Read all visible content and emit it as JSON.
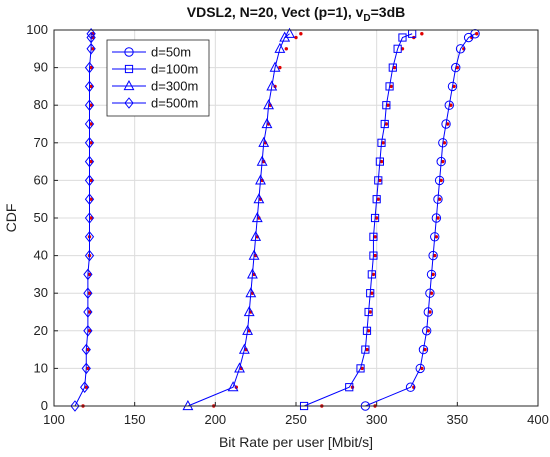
{
  "chart_data": {
    "type": "line",
    "title": {
      "main": "VDSL2, N=20, Vect (p=1), v",
      "sub": "D",
      "tail": "=3dB"
    },
    "xlabel": "Bit Rate per user [Mbit/s]",
    "ylabel": "CDF",
    "xlim": [
      100,
      400
    ],
    "ylim": [
      0,
      100
    ],
    "xticks": [
      "100",
      "150",
      "200",
      "250",
      "300",
      "350",
      "400"
    ],
    "yticks": [
      "0",
      "10",
      "20",
      "30",
      "40",
      "50",
      "60",
      "70",
      "80",
      "90",
      "100"
    ],
    "grid": true,
    "legend": {
      "position": "top-left"
    },
    "line_color": "#0000ff",
    "ref_color": "#e00000",
    "y": [
      0,
      5,
      10,
      15,
      20,
      25,
      30,
      35,
      40,
      45,
      50,
      55,
      60,
      65,
      70,
      75,
      80,
      85,
      90,
      95,
      98,
      99
    ],
    "series": [
      {
        "name": "d=50m",
        "marker": "circle",
        "x": [
          293,
          321,
          327,
          329,
          331,
          332,
          333,
          334,
          335,
          336,
          337,
          338,
          339,
          340,
          341,
          343,
          345,
          347,
          349,
          352,
          357,
          361
        ]
      },
      {
        "name": "d=100m",
        "marker": "square",
        "x": [
          255,
          283,
          290,
          293,
          294,
          295,
          296,
          297,
          298,
          298,
          299,
          300,
          301,
          302,
          303,
          305,
          306,
          308,
          310,
          313,
          316,
          322
        ]
      },
      {
        "name": "d=300m",
        "marker": "triangle",
        "x": [
          183,
          211,
          215,
          218,
          220,
          221,
          222,
          223,
          224,
          225,
          226,
          227,
          228,
          229,
          230,
          232,
          233,
          235,
          237,
          240,
          243,
          246
        ]
      },
      {
        "name": "d=500m",
        "marker": "diamond",
        "x": [
          113,
          119,
          120,
          120,
          121,
          121,
          121,
          121,
          122,
          122,
          122,
          122,
          122,
          122,
          122,
          122,
          122,
          122,
          122,
          123,
          123,
          123
        ]
      }
    ],
    "reference_points": [
      {
        "x": [
          299,
          323,
          328,
          330,
          332,
          333,
          334,
          335,
          336,
          337,
          338,
          339,
          340,
          341,
          342,
          344,
          346,
          348,
          350,
          354,
          359,
          362
        ],
        "y": [
          0,
          5,
          10,
          15,
          20,
          25,
          30,
          35,
          40,
          45,
          50,
          55,
          60,
          65,
          70,
          75,
          80,
          85,
          90,
          95,
          98,
          99
        ]
      },
      {
        "x": [
          266,
          285,
          291,
          294,
          295,
          296,
          297,
          298,
          299,
          299,
          300,
          301,
          302,
          303,
          304,
          306,
          307,
          309,
          311,
          316,
          323,
          328
        ],
        "y": [
          0,
          5,
          10,
          15,
          20,
          25,
          30,
          35,
          40,
          45,
          50,
          55,
          60,
          65,
          70,
          75,
          80,
          85,
          90,
          95,
          98,
          99
        ]
      },
      {
        "x": [
          199,
          213,
          216,
          219,
          221,
          222,
          223,
          224,
          225,
          226,
          227,
          228,
          229,
          230,
          231,
          233,
          234,
          237,
          240,
          244,
          250,
          253
        ],
        "y": [
          0,
          5,
          10,
          15,
          20,
          25,
          30,
          35,
          40,
          45,
          50,
          55,
          60,
          65,
          70,
          75,
          80,
          85,
          90,
          95,
          98,
          99
        ]
      },
      {
        "x": [
          118,
          120,
          121,
          121,
          122,
          122,
          122,
          122,
          122,
          122,
          123,
          123,
          123,
          123,
          123,
          123,
          123,
          123,
          123,
          124,
          124,
          124
        ],
        "y": [
          0,
          5,
          10,
          15,
          20,
          25,
          30,
          35,
          40,
          45,
          50,
          55,
          60,
          65,
          70,
          75,
          80,
          85,
          90,
          95,
          98,
          99
        ]
      }
    ]
  }
}
